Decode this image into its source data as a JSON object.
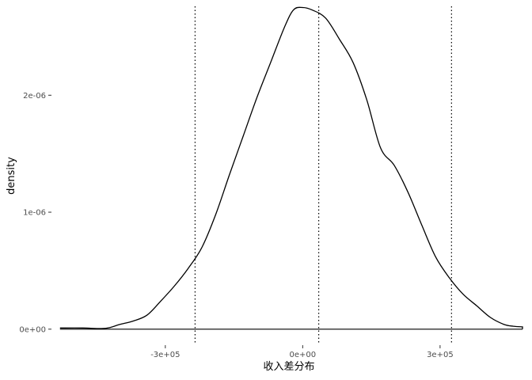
{
  "chart_data": {
    "type": "line",
    "xlabel": "收入差分布",
    "ylabel": "density",
    "xlim": [
      -540000,
      480000
    ],
    "ylim": [
      -1.3e-07,
      2.76e-06
    ],
    "x_ticks": [
      {
        "value": -300000,
        "label": "-3e+05"
      },
      {
        "value": 0,
        "label": "0e+00"
      },
      {
        "value": 300000,
        "label": "3e+05"
      }
    ],
    "y_ticks": [
      {
        "value": 0,
        "label": "0e+00"
      },
      {
        "value": 1e-06,
        "label": "1e-06"
      },
      {
        "value": 2e-06,
        "label": "2e-06"
      }
    ],
    "grid": false,
    "legend": "none",
    "line_color": "#000000",
    "reference_lines": [
      {
        "x": -235000,
        "style": "dotted"
      },
      {
        "x": 35000,
        "style": "dotted"
      },
      {
        "x": 325000,
        "style": "dotted"
      }
    ],
    "series": [
      {
        "x": [
          -530000,
          -480000,
          -440000,
          -420000,
          -400000,
          -370000,
          -340000,
          -310000,
          -280000,
          -250000,
          -220000,
          -190000,
          -160000,
          -130000,
          -100000,
          -70000,
          -40000,
          -20000,
          0,
          20000,
          50000,
          80000,
          110000,
          140000,
          170000,
          200000,
          230000,
          260000,
          290000,
          320000,
          350000,
          380000,
          410000,
          440000,
          460000,
          480000
        ],
        "y": [
          1e-08,
          1e-08,
          5e-09,
          1.5e-08,
          4e-08,
          7e-08,
          1.2e-07,
          2.4e-07,
          3.7e-07,
          5.2e-07,
          7e-07,
          9.8e-07,
          1.32e-06,
          1.65e-06,
          1.98e-06,
          2.28e-06,
          2.58e-06,
          2.73e-06,
          2.75e-06,
          2.73e-06,
          2.66e-06,
          2.48e-06,
          2.28e-06,
          1.96e-06,
          1.55e-06,
          1.4e-06,
          1.17e-06,
          8.9e-07,
          6.2e-07,
          4.4e-07,
          3e-07,
          2e-07,
          1e-07,
          4e-08,
          2.5e-08,
          2e-08
        ]
      }
    ]
  }
}
